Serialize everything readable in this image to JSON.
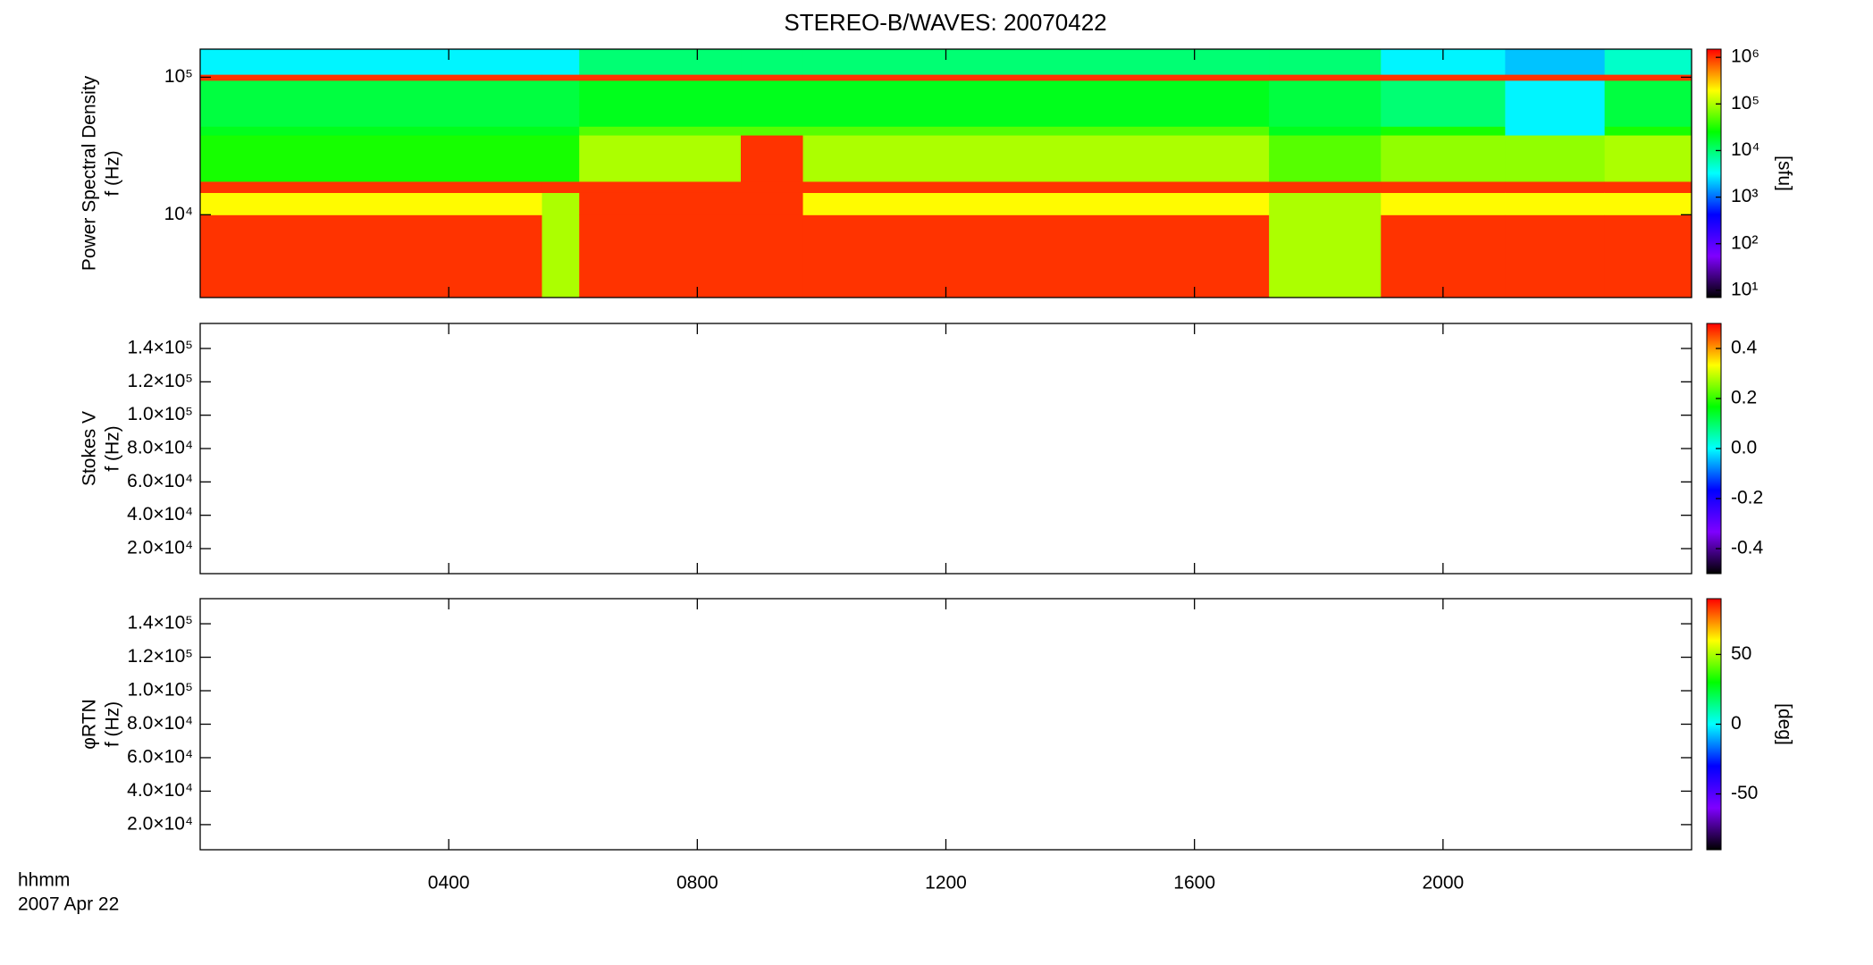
{
  "chart_data": [
    {
      "type": "heatmap",
      "title": "STEREO-B/WAVES: 20070422",
      "ylabel": [
        "Power Spectral Density",
        "f (Hz)"
      ],
      "ylog": true,
      "ylim": [
        2500,
        160000
      ],
      "yticks": [
        {
          "value": 10000,
          "label": "10⁴"
        },
        {
          "value": 100000,
          "label": "10⁵"
        }
      ],
      "x": [
        0,
        5.5,
        6.1,
        8.7,
        9.7,
        17.2,
        19,
        21,
        22.6,
        24
      ],
      "y": [
        2500,
        10000,
        14500,
        17500,
        38000,
        44000,
        95000,
        105000,
        160000
      ],
      "z": [
        [
          1000000,
          200000,
          1000000,
          30000,
          20000,
          15000,
          1000000,
          3000
        ],
        [
          100000,
          100000,
          1000000,
          30000,
          20000,
          15000,
          1000000,
          3000
        ],
        [
          1000000,
          1000000,
          1000000,
          100000,
          50000,
          20000,
          1000000,
          10000
        ],
        [
          1000000,
          1000000,
          1000000,
          1000000,
          50000,
          20000,
          1000000,
          10000
        ],
        [
          1000000,
          200000,
          1000000,
          100000,
          50000,
          20000,
          1000000,
          10000
        ],
        [
          100000,
          100000,
          1000000,
          50000,
          20000,
          15000,
          1000000,
          10000
        ],
        [
          1000000,
          200000,
          1000000,
          80000,
          30000,
          10000,
          1000000,
          3000
        ],
        [
          1000000,
          200000,
          1000000,
          80000,
          3000,
          3000,
          1000000,
          2000
        ],
        [
          1000000,
          200000,
          1000000,
          100000,
          30000,
          15000,
          1000000,
          5000
        ]
      ],
      "colorscale": [
        "#000000",
        "#7f00ff",
        "#0000ff",
        "#00ffff",
        "#00ff00",
        "#ffff00",
        "#ff0000"
      ],
      "colorbar": {
        "log": true,
        "lim": [
          7,
          1500000
        ],
        "label": "[sfu]",
        "ticks": [
          {
            "value": 10,
            "label": "10¹"
          },
          {
            "value": 100,
            "label": "10²"
          },
          {
            "value": 1000,
            "label": "10³"
          },
          {
            "value": 10000,
            "label": "10⁴"
          },
          {
            "value": 100000,
            "label": "10⁵"
          },
          {
            "value": 1000000,
            "label": "10⁶"
          }
        ]
      }
    },
    {
      "type": "heatmap",
      "ylabel": [
        "Stokes V",
        "f (Hz)"
      ],
      "ylog": false,
      "ylim": [
        5000,
        155000
      ],
      "yticks": [
        {
          "value": 20000,
          "label": "2.0×10⁴"
        },
        {
          "value": 40000,
          "label": "4.0×10⁴"
        },
        {
          "value": 60000,
          "label": "6.0×10⁴"
        },
        {
          "value": 80000,
          "label": "8.0×10⁴"
        },
        {
          "value": 100000,
          "label": "1.0×10⁵"
        },
        {
          "value": 120000,
          "label": "1.2×10⁵"
        },
        {
          "value": 140000,
          "label": "1.4×10⁵"
        }
      ],
      "colorbar": {
        "log": false,
        "lim": [
          -0.5,
          0.5
        ],
        "label": "",
        "ticks": [
          -0.4,
          -0.2,
          {
            "value": 0,
            "label": "0.0"
          },
          0.2,
          0.4
        ]
      }
    },
    {
      "type": "heatmap",
      "ylabel": [
        "φRTN",
        "f (Hz)"
      ],
      "ylog": false,
      "ylim": [
        5000,
        155000
      ],
      "yticks": [
        {
          "value": 20000,
          "label": "2.0×10⁴"
        },
        {
          "value": 40000,
          "label": "4.0×10⁴"
        },
        {
          "value": 60000,
          "label": "6.0×10⁴"
        },
        {
          "value": 80000,
          "label": "8.0×10⁴"
        },
        {
          "value": 100000,
          "label": "1.0×10⁵"
        },
        {
          "value": 120000,
          "label": "1.2×10⁵"
        },
        {
          "value": 140000,
          "label": "1.4×10⁵"
        }
      ],
      "colorbar": {
        "log": false,
        "lim": [
          -90,
          90
        ],
        "label": "[deg]",
        "ticks": [
          -50,
          0,
          50
        ]
      },
      "xlim": [
        0,
        24
      ],
      "xticks": [
        {
          "value": 4,
          "label": "0400"
        },
        {
          "value": 8,
          "label": "0800"
        },
        {
          "value": 12,
          "label": "1200"
        },
        {
          "value": 16,
          "label": "1600"
        },
        {
          "value": 20,
          "label": "2000"
        }
      ],
      "xlabel": "hhmm",
      "date": "2007 Apr 22"
    }
  ]
}
